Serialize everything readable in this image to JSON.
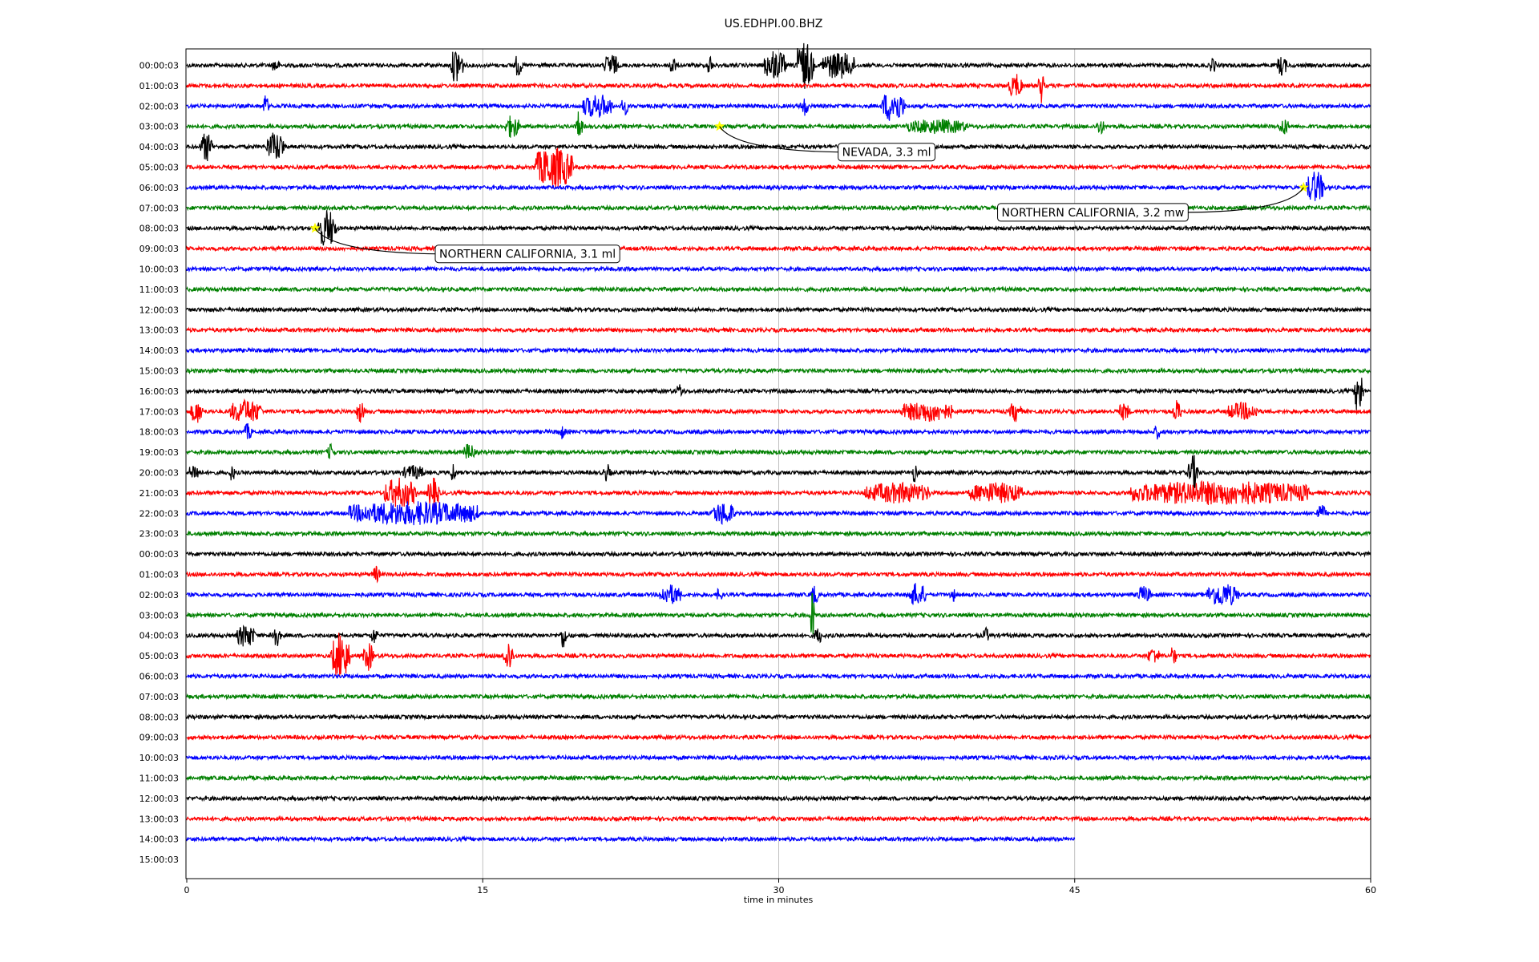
{
  "chart_data": {
    "type": "line",
    "title": "US.EDHPI.00.BHZ",
    "xlabel": "time in minutes",
    "ylabel": "",
    "xlim": [
      0,
      60
    ],
    "x_ticks": [
      0,
      15,
      30,
      45,
      60
    ],
    "x_tick_labels": [
      "0",
      "15",
      "30",
      "45",
      "60"
    ],
    "grid": "vertical gridlines at 15, 30, 45",
    "legend": "none",
    "color_cycle": [
      "#000000",
      "#ff0000",
      "#0000ff",
      "#008000"
    ],
    "rows": [
      {
        "label": "00:00:03",
        "end_minute": 60,
        "events": [
          [
            13.7,
            1.3,
            0.5
          ],
          [
            16.8,
            0.8,
            0.3
          ],
          [
            21.5,
            0.8,
            0.6
          ],
          [
            24.6,
            0.7,
            0.3
          ],
          [
            26.5,
            0.8,
            0.2
          ],
          [
            29.8,
            1.0,
            1.0
          ],
          [
            31.3,
            1.6,
            0.8
          ],
          [
            33,
            0.9,
            1.6
          ],
          [
            55.5,
            0.7,
            0.4
          ],
          [
            52,
            0.7,
            0.2
          ],
          [
            4.5,
            0.5,
            0.3
          ]
        ]
      },
      {
        "label": "01:00:03",
        "end_minute": 60,
        "events": [
          [
            42,
            0.8,
            0.6
          ],
          [
            43.3,
            1.2,
            0.2
          ]
        ]
      },
      {
        "label": "02:00:03",
        "end_minute": 60,
        "events": [
          [
            4,
            0.8,
            0.2
          ],
          [
            20.8,
            0.8,
            1.4
          ],
          [
            22.2,
            0.6,
            0.3
          ],
          [
            31.3,
            0.7,
            0.3
          ],
          [
            35.8,
            1.1,
            1.0
          ]
        ]
      },
      {
        "label": "03:00:03",
        "end_minute": 60,
        "events": [
          [
            16.5,
            0.8,
            0.6
          ],
          [
            19.9,
            1.2,
            0.2
          ],
          [
            38,
            0.5,
            3.0
          ],
          [
            46.3,
            0.6,
            0.3
          ],
          [
            55.6,
            0.6,
            0.4
          ]
        ]
      },
      {
        "label": "04:00:03",
        "end_minute": 60,
        "events": [
          [
            1.0,
            1.0,
            0.5
          ],
          [
            4.5,
            1.0,
            0.8
          ]
        ]
      },
      {
        "label": "05:00:03",
        "end_minute": 60,
        "events": [
          [
            18.6,
            1.4,
            1.8
          ]
        ]
      },
      {
        "label": "06:00:03",
        "end_minute": 60,
        "events": [
          [
            57.2,
            1.1,
            0.8
          ]
        ]
      },
      {
        "label": "07:00:03",
        "end_minute": 60,
        "events": []
      },
      {
        "label": "08:00:03",
        "end_minute": 60,
        "events": [
          [
            7.1,
            1.3,
            0.8
          ]
        ]
      },
      {
        "label": "09:00:03",
        "end_minute": 60,
        "events": []
      },
      {
        "label": "10:00:03",
        "end_minute": 60,
        "events": []
      },
      {
        "label": "11:00:03",
        "end_minute": 60,
        "events": []
      },
      {
        "label": "12:00:03",
        "end_minute": 60,
        "events": []
      },
      {
        "label": "13:00:03",
        "end_minute": 60,
        "events": []
      },
      {
        "label": "14:00:03",
        "end_minute": 60,
        "events": []
      },
      {
        "label": "15:00:03",
        "end_minute": 60,
        "events": []
      },
      {
        "label": "16:00:03",
        "end_minute": 60,
        "events": [
          [
            59.4,
            1.7,
            0.3
          ],
          [
            25,
            0.5,
            0.3
          ]
        ]
      },
      {
        "label": "17:00:03",
        "end_minute": 60,
        "events": [
          [
            0.5,
            0.8,
            0.5
          ],
          [
            3,
            0.8,
            1.5
          ],
          [
            8.8,
            0.8,
            0.3
          ],
          [
            37.5,
            0.7,
            2.5
          ],
          [
            42,
            0.7,
            0.5
          ],
          [
            47.5,
            0.6,
            0.5
          ],
          [
            50.2,
            0.8,
            0.3
          ],
          [
            53.5,
            0.6,
            1.5
          ]
        ]
      },
      {
        "label": "18:00:03",
        "end_minute": 60,
        "events": [
          [
            3.1,
            0.6,
            0.3
          ],
          [
            19,
            0.5,
            0.3
          ],
          [
            49.2,
            0.5,
            0.3
          ]
        ]
      },
      {
        "label": "19:00:03",
        "end_minute": 60,
        "events": [
          [
            7.3,
            0.6,
            0.3
          ],
          [
            14.3,
            0.6,
            0.5
          ]
        ]
      },
      {
        "label": "20:00:03",
        "end_minute": 60,
        "events": [
          [
            0.4,
            0.6,
            0.5
          ],
          [
            2.3,
            0.6,
            0.2
          ],
          [
            11.5,
            0.5,
            1.0
          ],
          [
            13.5,
            0.7,
            0.2
          ],
          [
            21.3,
            0.6,
            0.3
          ],
          [
            36.9,
            0.7,
            0.2
          ],
          [
            51,
            1.2,
            0.4
          ]
        ]
      },
      {
        "label": "21:00:03",
        "end_minute": 60,
        "events": [
          [
            10.8,
            1.0,
            1.5
          ],
          [
            12.5,
            1.0,
            0.5
          ],
          [
            36,
            0.7,
            3.2
          ],
          [
            41,
            0.7,
            2.6
          ],
          [
            52.3,
            0.8,
            9.0
          ]
        ]
      },
      {
        "label": "22:00:03",
        "end_minute": 60,
        "events": [
          [
            11.5,
            0.8,
            6.5
          ],
          [
            27.2,
            0.8,
            1.0
          ],
          [
            57.5,
            0.6,
            0.4
          ]
        ]
      },
      {
        "label": "23:00:03",
        "end_minute": 60,
        "events": []
      },
      {
        "label": "00:00:03",
        "end_minute": 60,
        "events": []
      },
      {
        "label": "01:00:03",
        "end_minute": 60,
        "events": [
          [
            9.6,
            0.6,
            0.3
          ]
        ]
      },
      {
        "label": "02:00:03",
        "end_minute": 60,
        "events": [
          [
            24.5,
            0.7,
            1.0
          ],
          [
            31.8,
            0.7,
            0.3
          ],
          [
            37,
            0.8,
            0.8
          ],
          [
            38.8,
            0.6,
            0.2
          ],
          [
            48.5,
            0.6,
            0.6
          ],
          [
            52.5,
            0.8,
            1.5
          ],
          [
            27,
            0.6,
            0.2
          ]
        ]
      },
      {
        "label": "03:00:03",
        "end_minute": 60,
        "events": [
          [
            31.7,
            1.9,
            0.1
          ]
        ]
      },
      {
        "label": "04:00:03",
        "end_minute": 60,
        "events": [
          [
            3,
            0.8,
            0.8
          ],
          [
            4.5,
            0.8,
            0.4
          ],
          [
            9.5,
            0.6,
            0.3
          ],
          [
            19.1,
            1.0,
            0.2
          ],
          [
            32,
            0.6,
            0.3
          ],
          [
            40.5,
            0.6,
            0.2
          ]
        ]
      },
      {
        "label": "05:00:03",
        "end_minute": 60,
        "events": [
          [
            7.8,
            1.6,
            0.8
          ],
          [
            9.2,
            1.0,
            0.4
          ],
          [
            16.3,
            1.1,
            0.4
          ],
          [
            49,
            0.6,
            0.5
          ],
          [
            50,
            0.8,
            0.2
          ]
        ]
      },
      {
        "label": "06:00:03",
        "end_minute": 60,
        "events": []
      },
      {
        "label": "07:00:03",
        "end_minute": 60,
        "events": []
      },
      {
        "label": "08:00:03",
        "end_minute": 60,
        "events": []
      },
      {
        "label": "09:00:03",
        "end_minute": 60,
        "events": []
      },
      {
        "label": "10:00:03",
        "end_minute": 60,
        "events": []
      },
      {
        "label": "11:00:03",
        "end_minute": 60,
        "events": []
      },
      {
        "label": "12:00:03",
        "end_minute": 60,
        "events": []
      },
      {
        "label": "13:00:03",
        "end_minute": 60,
        "events": []
      },
      {
        "label": "14:00:03",
        "end_minute": 45,
        "events": []
      },
      {
        "label": "15:00:03",
        "end_minute": 0,
        "events": []
      }
    ],
    "annotations": [
      {
        "text": "NEVADA, 3.3 ml",
        "row": 3,
        "x": 27.0,
        "star_color": "#ffff00"
      },
      {
        "text": "NORTHERN CALIFORNIA, 3.2 mw",
        "row": 6,
        "x": 56.6,
        "star_color": "#ffff00"
      },
      {
        "text": "NORTHERN CALIFORNIA, 3.1 ml",
        "row": 8,
        "x": 6.5,
        "star_color": "#ffff00"
      }
    ]
  }
}
